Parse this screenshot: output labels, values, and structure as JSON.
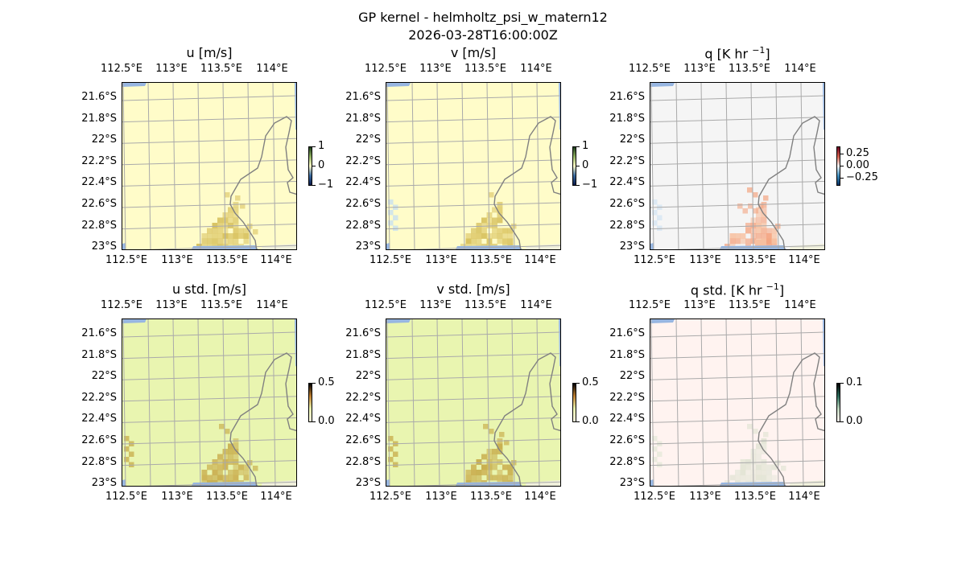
{
  "figure": {
    "title": "GP kernel - helmholtz_psi_w_matern12",
    "subtitle": "2026-03-28T16:00:00Z"
  },
  "axes_labels": {
    "lon_ticks": [
      "112.5°E",
      "113°E",
      "113.5°E",
      "114°E"
    ],
    "lat_ticks": [
      "21.6°S",
      "21.8°S",
      "22°S",
      "22.2°S",
      "22.4°S",
      "22.6°S",
      "22.8°S",
      "23°S"
    ]
  },
  "panels": [
    {
      "title": "u [m/s]",
      "sup": "",
      "close": "",
      "bg": "#fffcc9",
      "blob": "#e0cc70",
      "blob2": "#d8c260",
      "side": "",
      "cbar_ticks": [
        "1",
        "0",
        "−1"
      ],
      "cbar_gradient": "linear-gradient(#1a3a1a,#8fb060,#fffcc9,#3a6aa0,#0a1a4a)"
    },
    {
      "title": "v [m/s]",
      "sup": "",
      "close": "",
      "bg": "#fffcc9",
      "blob": "#e0cc70",
      "blob2": "#d8c260",
      "side": "#c8e0f0",
      "cbar_ticks": [
        "1",
        "0",
        "−1"
      ],
      "cbar_gradient": "linear-gradient(#1a3a1a,#8fb060,#fffcc9,#3a6aa0,#0a1a4a)"
    },
    {
      "title": "q [K hr ",
      "sup": "−1",
      "close": "]",
      "bg": "#f5f5f5",
      "blob": "#f4a582",
      "blob2": "#f7c0a0",
      "side": "#d6e6f4",
      "cbar_ticks": [
        "0.25",
        "0.00",
        "−0.25"
      ],
      "cbar_gradient": "linear-gradient(#67001f,#d6604d,#f7f7f7,#4393c3,#053061)"
    },
    {
      "title": "u std. [m/s]",
      "sup": "",
      "close": "",
      "bg": "#e9f5b0",
      "blob": "#c9b050",
      "blob2": "#cdb457",
      "side": "#c9b050",
      "cbar_ticks": [
        "0.5",
        "0.0"
      ],
      "cbar_gradient": "linear-gradient(#000,#c08030,#e9f5b0,#fffbe0)"
    },
    {
      "title": "v std. [m/s]",
      "sup": "",
      "close": "",
      "bg": "#e9f5b0",
      "blob": "#c9b050",
      "blob2": "#cdb457",
      "side": "#c9b050",
      "cbar_ticks": [
        "0.5",
        "0.0"
      ],
      "cbar_gradient": "linear-gradient(#000,#c08030,#e9f5b0,#fffbe0)"
    },
    {
      "title": "q std. [K hr ",
      "sup": "−1",
      "close": "]",
      "bg": "#fff3f0",
      "blob": "#e2e4d4",
      "blob2": "#e8e8dc",
      "side": "#e6e8da",
      "cbar_ticks": [
        "0.1",
        "0.0"
      ],
      "cbar_gradient": "linear-gradient(#000,#2a6a5a,#c0d8c0,#fff3f0)"
    }
  ]
}
